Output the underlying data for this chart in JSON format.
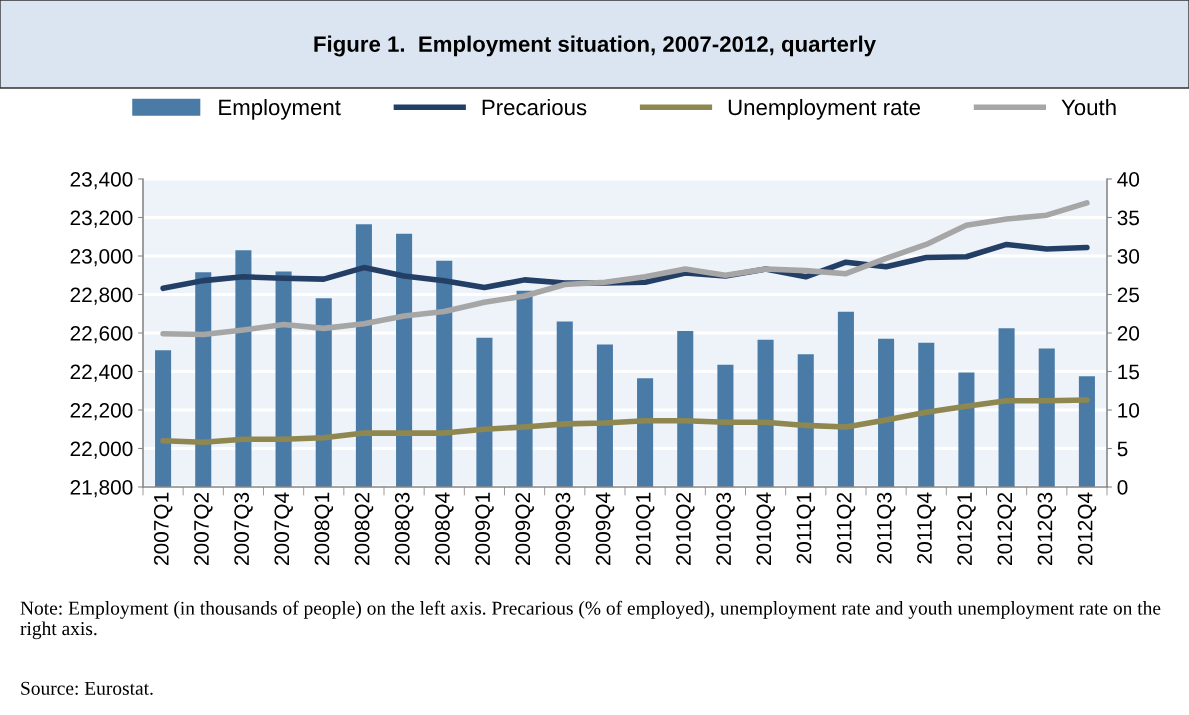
{
  "chart_data": {
    "type": "bar",
    "title": "Figure 1.  Employment situation, 2007-2012, quarterly",
    "categories": [
      "2007Q1",
      "2007Q2",
      "2007Q3",
      "2007Q4",
      "2008Q1",
      "2008Q2",
      "2008Q3",
      "2008Q4",
      "2009Q1",
      "2009Q2",
      "2009Q3",
      "2009Q4",
      "2010Q1",
      "2010Q2",
      "2010Q3",
      "2010Q4",
      "2011Q1",
      "2011Q2",
      "2011Q3",
      "2011Q4",
      "2012Q1",
      "2012Q2",
      "2012Q3",
      "2012Q4"
    ],
    "series": [
      {
        "name": "Employment",
        "color": "#4a7ba6",
        "values": [
          22510,
          22915,
          23030,
          22920,
          22780,
          23165,
          23115,
          22975,
          22575,
          22820,
          22660,
          22540,
          22365,
          22610,
          22435,
          22565,
          22490,
          22710,
          22570,
          22550,
          22395,
          22625,
          22520,
          22375
        ]
      },
      {
        "name": "Precarious",
        "type": "line",
        "axis": "y2",
        "color": "#243f66",
        "values": [
          25.8,
          26.8,
          27.3,
          27.1,
          27.0,
          28.5,
          27.4,
          26.8,
          25.9,
          26.9,
          26.5,
          26.5,
          26.6,
          27.8,
          27.4,
          28.3,
          27.3,
          29.2,
          28.6,
          29.8,
          29.9,
          31.5,
          30.9,
          31.1
        ]
      },
      {
        "name": "Unemployment rate",
        "type": "line",
        "axis": "y2",
        "color": "#8f8750",
        "values": [
          6.0,
          5.8,
          6.2,
          6.2,
          6.4,
          7.0,
          7.0,
          7.0,
          7.5,
          7.8,
          8.2,
          8.3,
          8.6,
          8.6,
          8.4,
          8.4,
          8.0,
          7.8,
          8.7,
          9.7,
          10.5,
          11.2,
          11.2,
          11.3
        ]
      },
      {
        "name": "Youth",
        "type": "line",
        "axis": "y2",
        "color": "#a6a6a6",
        "values": [
          19.9,
          19.8,
          20.4,
          21.1,
          20.6,
          21.2,
          22.2,
          22.8,
          24.0,
          24.8,
          26.3,
          26.6,
          27.3,
          28.3,
          27.5,
          28.3,
          28.1,
          27.7,
          29.7,
          31.5,
          34.0,
          34.8,
          35.3,
          36.9
        ]
      }
    ],
    "ylim": [
      21800,
      23400
    ],
    "yticks": [
      {
        "value": 21800,
        "label": "21,800"
      },
      {
        "value": 22000,
        "label": "22,000"
      },
      {
        "value": 22200,
        "label": "22,200"
      },
      {
        "value": 22400,
        "label": "22,400"
      },
      {
        "value": 22600,
        "label": "22,600"
      },
      {
        "value": 22800,
        "label": "22,800"
      },
      {
        "value": 23000,
        "label": "23,000"
      },
      {
        "value": 23200,
        "label": "23,200"
      },
      {
        "value": 23400,
        "label": "23,400"
      }
    ],
    "y2lim": [
      0,
      40
    ],
    "y2ticks": [
      0,
      5,
      10,
      15,
      20,
      25,
      30,
      35,
      40
    ],
    "grid": "y",
    "legend": "top",
    "marker": "none",
    "line_style": "solid",
    "annotations": [
      "Note: Employment (in thousands of people) on the left axis. Precarious (% of employed), unemployment rate and youth unemployment rate on the right axis.",
      "Source: Eurostat."
    ]
  }
}
